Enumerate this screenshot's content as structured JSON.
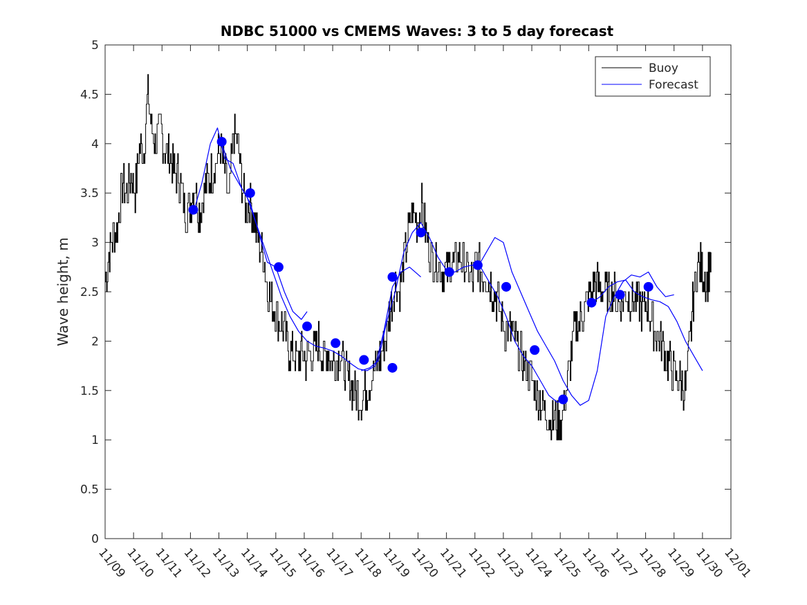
{
  "chart_data": {
    "type": "line",
    "title": "NDBC 51000 vs CMEMS Waves: 3 to 5 day forecast",
    "xlabel": "",
    "ylabel": "Wave height, m",
    "xlim": [
      0,
      22
    ],
    "ylim": [
      0,
      5
    ],
    "yticks": [
      "0",
      "0.5",
      "1",
      "1.5",
      "2",
      "2.5",
      "3",
      "3.5",
      "4",
      "4.5",
      "5"
    ],
    "xticks": [
      "11/09",
      "11/10",
      "11/11",
      "11/12",
      "11/13",
      "11/14",
      "11/15",
      "11/16",
      "11/17",
      "11/18",
      "11/19",
      "11/20",
      "11/21",
      "11/22",
      "11/23",
      "11/24",
      "11/25",
      "11/26",
      "11/27",
      "11/28",
      "11/29",
      "11/30",
      "12/01"
    ],
    "grid": false,
    "legend_position": "top-right",
    "colors": {
      "buoy": "#000000",
      "forecast": "#0000ff",
      "marker": "#0000ff",
      "axis": "#262626"
    },
    "series": [
      {
        "name": "Buoy",
        "color": "#000000",
        "x": [
          0,
          0.15,
          0.3,
          0.45,
          0.6,
          0.75,
          0.9,
          1.05,
          1.2,
          1.35,
          1.5,
          1.65,
          1.8,
          1.95,
          2.1,
          2.25,
          2.4,
          2.55,
          2.7,
          2.85,
          3.0,
          3.15,
          3.3,
          3.45,
          3.6,
          3.75,
          3.9,
          4.05,
          4.2,
          4.35,
          4.5,
          4.65,
          4.8,
          4.95,
          5.1,
          5.25,
          5.4,
          5.55,
          5.7,
          5.85,
          6.0,
          6.15,
          6.3,
          6.45,
          6.6,
          6.75,
          6.9,
          7.05,
          7.2,
          7.35,
          7.5,
          7.65,
          7.8,
          7.95,
          8.1,
          8.25,
          8.4,
          8.55,
          8.7,
          8.85,
          9.0,
          9.15,
          9.3,
          9.45,
          9.6,
          9.75,
          9.9,
          10.05,
          10.2,
          10.35,
          10.5,
          10.65,
          10.8,
          10.95,
          11.1,
          11.25,
          11.4,
          11.55,
          11.7,
          11.85,
          12.0,
          12.15,
          12.3,
          12.45,
          12.6,
          12.75,
          12.9,
          13.05,
          13.2,
          13.35,
          13.5,
          13.65,
          13.8,
          13.95,
          14.1,
          14.25,
          14.4,
          14.55,
          14.7,
          14.85,
          15.0,
          15.15,
          15.3,
          15.45,
          15.6,
          15.75,
          15.9,
          16.05,
          16.2,
          16.35,
          16.5,
          16.65,
          16.8,
          16.95,
          17.1,
          17.25,
          17.4,
          17.55,
          17.7,
          17.85,
          18.0,
          18.15,
          18.3,
          18.45,
          18.6,
          18.75,
          18.9,
          19.05,
          19.2,
          19.35,
          19.5,
          19.65,
          19.8,
          19.95,
          20.1,
          20.25,
          20.4,
          20.55,
          20.7,
          20.85,
          21.0,
          21.15,
          21.3
        ],
        "values": [
          2.6,
          2.9,
          3.1,
          3.2,
          3.6,
          3.5,
          3.7,
          3.5,
          4.0,
          3.9,
          4.5,
          4.1,
          4.0,
          4.2,
          3.9,
          3.9,
          3.7,
          3.7,
          3.5,
          3.3,
          3.4,
          3.6,
          3.3,
          3.5,
          3.6,
          3.7,
          3.8,
          4.0,
          3.7,
          3.4,
          4.1,
          4.0,
          3.6,
          3.3,
          3.4,
          3.2,
          3.0,
          2.9,
          2.5,
          2.4,
          2.3,
          2.2,
          2.1,
          1.9,
          1.9,
          1.8,
          1.9,
          1.8,
          1.9,
          1.9,
          2.0,
          1.8,
          1.9,
          1.8,
          1.8,
          1.9,
          1.7,
          1.6,
          1.5,
          1.5,
          1.4,
          1.5,
          1.6,
          1.7,
          1.8,
          1.9,
          2.1,
          2.4,
          2.6,
          2.5,
          2.8,
          3.1,
          3.3,
          3.2,
          3.4,
          3.1,
          2.9,
          2.8,
          2.8,
          2.7,
          2.7,
          2.8,
          2.8,
          2.9,
          2.8,
          2.7,
          2.6,
          2.8,
          2.7,
          2.7,
          2.6,
          2.5,
          2.4,
          2.2,
          2.1,
          2.1,
          2.0,
          1.9,
          1.8,
          1.7,
          1.6,
          1.5,
          1.4,
          1.3,
          1.2,
          1.2,
          1.2,
          1.2,
          1.5,
          1.8,
          2.1,
          2.2,
          2.3,
          2.4,
          2.5,
          2.6,
          2.5,
          2.5,
          2.5,
          2.5,
          2.4,
          2.4,
          2.5,
          2.4,
          2.4,
          2.4,
          2.3,
          2.4,
          2.2,
          2.1,
          2.0,
          1.9,
          1.8,
          1.7,
          1.6,
          1.6,
          1.5,
          2.0,
          2.5,
          2.8,
          2.7,
          2.6,
          2.9
        ]
      },
      {
        "name": "Forecast",
        "color": "#0000ff",
        "segments": [
          {
            "x": [
              3.1,
              3.4,
              3.7,
              3.95,
              4.2,
              4.5,
              4.8,
              5.1,
              5.4,
              5.7,
              6.0,
              6.3,
              6.6,
              6.9,
              7.1
            ],
            "values": [
              3.3,
              3.6,
              4.0,
              4.16,
              3.85,
              3.8,
              3.55,
              3.4,
              3.1,
              2.8,
              2.75,
              2.5,
              2.3,
              2.22,
              2.3
            ]
          },
          {
            "x": [
              4.1,
              4.4,
              4.7,
              5.0,
              5.3,
              5.6,
              5.9,
              6.2,
              6.5,
              6.8,
              7.1,
              7.4,
              7.7,
              8.0,
              8.3,
              8.6,
              8.9,
              9.2,
              9.5,
              9.8,
              10.1,
              10.4,
              10.7,
              11.1
            ],
            "values": [
              4.0,
              3.75,
              3.6,
              3.45,
              3.2,
              2.95,
              2.7,
              2.45,
              2.25,
              2.1,
              2.0,
              1.95,
              1.93,
              1.9,
              1.85,
              1.78,
              1.72,
              1.7,
              1.75,
              2.1,
              2.55,
              2.7,
              2.75,
              2.65
            ]
          },
          {
            "x": [
              9.0,
              9.3,
              9.6,
              9.9,
              10.2,
              10.5,
              10.8,
              11.1,
              11.4,
              11.7,
              12.0,
              12.3,
              12.6,
              12.9,
              13.2,
              13.5,
              13.8,
              14.1,
              14.4,
              14.7,
              15.0,
              15.3,
              15.6,
              15.9,
              16.2
            ],
            "values": [
              1.7,
              1.73,
              1.8,
              2.2,
              2.5,
              2.9,
              3.1,
              3.2,
              3.05,
              2.85,
              2.72,
              2.7,
              2.75,
              2.77,
              2.75,
              2.6,
              2.45,
              2.25,
              2.0,
              1.85,
              1.75,
              1.6,
              1.45,
              1.38,
              1.41
            ]
          },
          {
            "x": [
              13.1,
              13.4,
              13.7,
              14.0,
              14.3,
              14.6,
              14.9,
              15.2,
              15.5,
              15.8,
              16.1,
              16.4,
              16.7,
              17.0,
              17.3,
              17.6,
              17.9,
              18.2,
              18.5,
              18.8,
              19.1,
              19.4,
              19.7,
              20.0
            ],
            "values": [
              2.75,
              2.9,
              3.05,
              3.0,
              2.7,
              2.5,
              2.3,
              2.1,
              1.95,
              1.8,
              1.6,
              1.45,
              1.35,
              1.4,
              1.7,
              2.25,
              2.45,
              2.6,
              2.67,
              2.65,
              2.7,
              2.55,
              2.45,
              2.47
            ]
          },
          {
            "x": [
              17.1,
              17.4,
              17.7,
              18.0,
              18.3,
              18.6,
              18.9,
              19.2,
              19.5,
              19.8,
              20.1,
              20.4,
              20.7,
              21.0
            ],
            "values": [
              2.39,
              2.45,
              2.55,
              2.6,
              2.62,
              2.5,
              2.45,
              2.42,
              2.4,
              2.35,
              2.2,
              2.0,
              1.85,
              1.7
            ]
          }
        ]
      },
      {
        "name": "",
        "type": "scatter",
        "color": "#0000ff",
        "x": [
          3.1,
          4.1,
          5.1,
          6.1,
          7.1,
          8.1,
          9.1,
          10.1,
          11.1,
          10.1,
          12.1,
          13.1,
          14.1,
          15.1,
          16.1,
          17.1,
          18.1,
          19.1
        ],
        "values": [
          3.33,
          4.02,
          3.5,
          2.75,
          2.15,
          1.98,
          1.81,
          1.73,
          3.1,
          2.65,
          2.7,
          2.77,
          2.55,
          1.91,
          1.41,
          2.39,
          2.47,
          2.55
        ]
      }
    ]
  }
}
